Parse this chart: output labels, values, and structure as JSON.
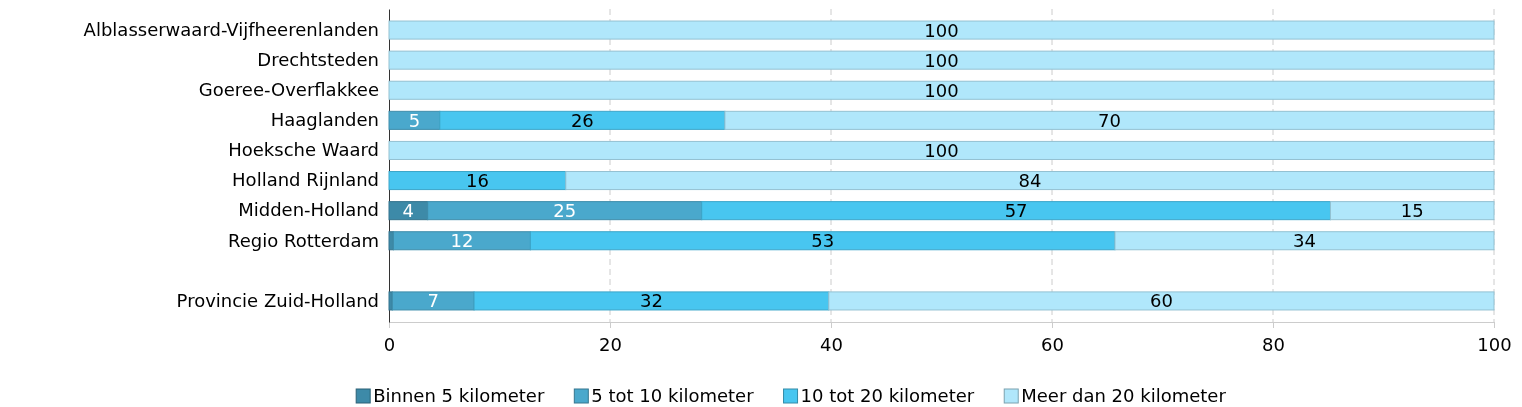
{
  "chart_data": {
    "type": "bar",
    "orientation": "horizontal",
    "stacked": true,
    "categories": [
      "Alblasserwaard-Vijfheerenlanden",
      "Drechtsteden",
      "Goeree-Overflakkee",
      "Haaglanden",
      "Hoeksche Waard",
      "Holland Rijnland",
      "Midden-Holland",
      "Regio Rotterdam",
      null,
      "Provincie Zuid-Holland"
    ],
    "series": [
      {
        "name": "Binnen 5 kilometer",
        "color": "#3d8aa8",
        "values": [
          null,
          null,
          null,
          null,
          null,
          null,
          3.5,
          0.4,
          null,
          0.3
        ],
        "value_labels": [
          null,
          null,
          null,
          null,
          null,
          null,
          "4",
          null,
          null,
          null
        ]
      },
      {
        "name": "5 tot 10 kilometer",
        "color": "#4aa8cc",
        "values": [
          null,
          null,
          null,
          4.6,
          null,
          null,
          24.8,
          12.4,
          null,
          7.4
        ],
        "value_labels": [
          null,
          null,
          null,
          "5",
          null,
          null,
          "25",
          "12",
          null,
          "7"
        ]
      },
      {
        "name": "10 tot 20 kilometer",
        "color": "#48c6f0",
        "values": [
          null,
          null,
          null,
          25.8,
          null,
          16,
          56.9,
          52.9,
          null,
          32.1
        ],
        "value_labels": [
          null,
          null,
          null,
          "26",
          null,
          "16",
          "57",
          "53",
          null,
          "32"
        ]
      },
      {
        "name": "Meer dan 20 kilometer",
        "color": "#b0e7fb",
        "values": [
          100,
          100,
          100,
          69.6,
          100,
          84,
          14.8,
          34.3,
          null,
          60.2
        ],
        "value_labels": [
          "100",
          "100",
          "100",
          "70",
          "100",
          "84",
          "15",
          "34",
          null,
          "60"
        ]
      }
    ],
    "xlim": [
      0,
      100
    ],
    "xticks": [
      0,
      20,
      40,
      60,
      80,
      100
    ],
    "grid": "x",
    "legend": "bottom"
  }
}
